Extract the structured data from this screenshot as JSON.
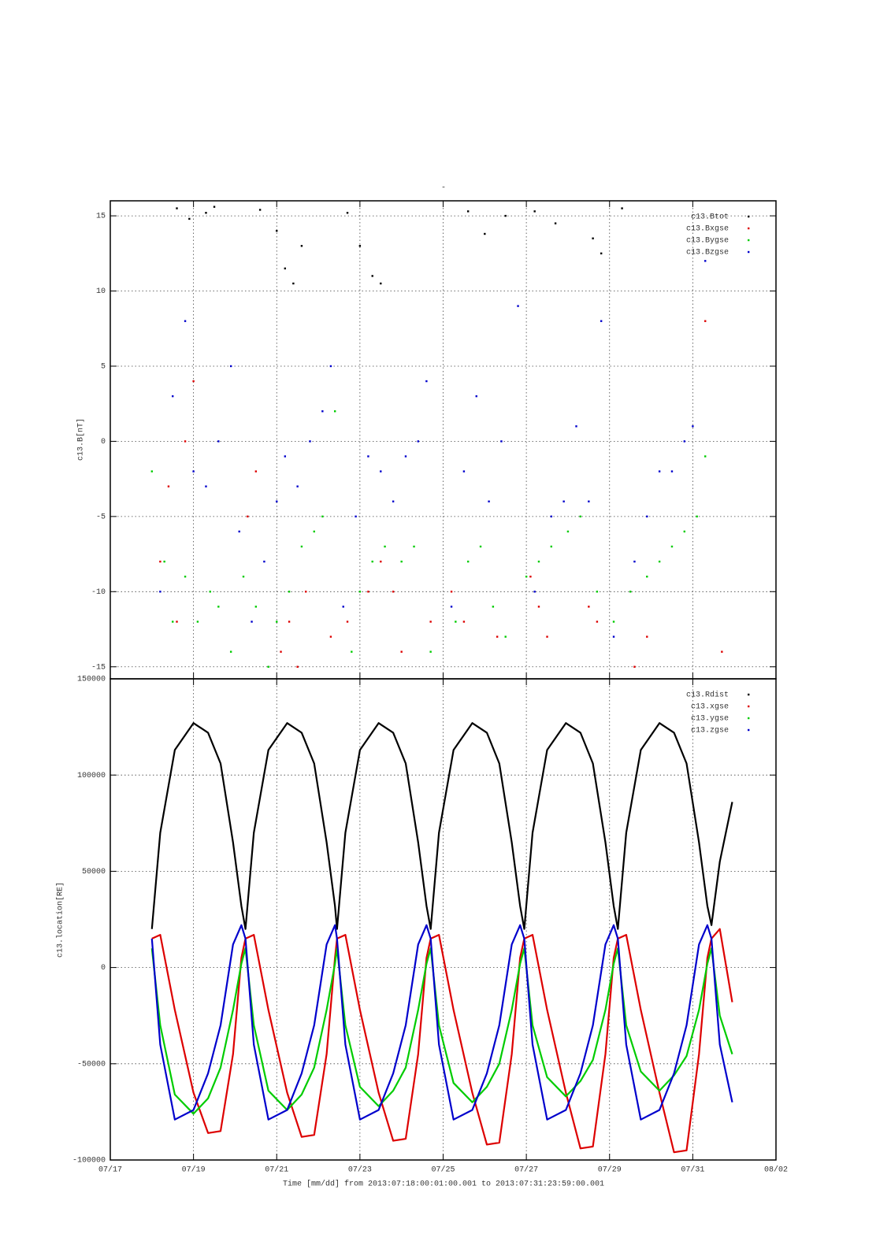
{
  "chart_data": [
    {
      "type": "scatter",
      "title": "-",
      "ylabel": "c13.B[nT]",
      "grid": true,
      "legend": "top-right",
      "xlim": [
        17,
        33
      ],
      "ylim": [
        -15.8,
        16
      ],
      "yticks": [
        -15,
        -10,
        -5,
        0,
        5,
        10,
        15
      ],
      "series": [
        {
          "name": "c13.Btot",
          "color": "#000000",
          "x": [
            18.6,
            18.9,
            19.3,
            19.5,
            20.6,
            21.0,
            21.2,
            21.4,
            21.6,
            22.7,
            23.0,
            23.3,
            23.5,
            25.6,
            26.0,
            26.5,
            27.2,
            27.7,
            28.6,
            28.8,
            29.3
          ],
          "values": [
            15.5,
            14.8,
            15.2,
            15.6,
            15.4,
            14,
            11.5,
            10.5,
            13,
            15.2,
            13,
            11,
            10.5,
            15.3,
            13.8,
            15,
            15.3,
            14.5,
            13.5,
            12.5,
            15.5
          ]
        },
        {
          "name": "c13.Bxgse",
          "color": "#dd0000",
          "x": [
            18.2,
            18.4,
            18.6,
            18.8,
            19.0,
            20.3,
            20.5,
            21.1,
            21.3,
            21.5,
            21.7,
            22.3,
            22.7,
            23.2,
            23.5,
            23.8,
            24.0,
            24.7,
            25.2,
            25.5,
            26.3,
            27.1,
            27.3,
            27.5,
            28.5,
            28.7,
            29.6,
            29.9,
            31.3,
            31.7
          ],
          "values": [
            -8,
            -3,
            -12,
            0,
            4,
            -5,
            -2,
            -14,
            -12,
            -15,
            -10,
            -13,
            -12,
            -10,
            -8,
            -10,
            -14,
            -12,
            -10,
            -12,
            -13,
            -9,
            -11,
            -13,
            -11,
            -12,
            -15,
            -13,
            8,
            -14
          ]
        },
        {
          "name": "c13.Bygse",
          "color": "#00cc00",
          "x": [
            18.0,
            18.3,
            18.5,
            18.8,
            19.1,
            19.4,
            19.6,
            19.9,
            20.2,
            20.5,
            20.8,
            21.0,
            21.3,
            21.6,
            21.9,
            22.1,
            22.4,
            22.8,
            23.0,
            23.3,
            23.6,
            24.0,
            24.3,
            24.7,
            25.3,
            25.6,
            25.9,
            26.2,
            26.5,
            27.0,
            27.3,
            27.6,
            28.0,
            28.3,
            28.7,
            29.1,
            29.5,
            29.9,
            30.2,
            30.5,
            30.8,
            31.1,
            31.3
          ],
          "values": [
            -2,
            -8,
            -12,
            -9,
            -12,
            -10,
            -11,
            -14,
            -9,
            -11,
            -15,
            -12,
            -10,
            -7,
            -6,
            -5,
            2,
            -14,
            -10,
            -8,
            -7,
            -8,
            -7,
            -14,
            -12,
            -8,
            -7,
            -11,
            -13,
            -9,
            -8,
            -7,
            -6,
            -5,
            -10,
            -12,
            -10,
            -9,
            -8,
            -7,
            -6,
            -5,
            -1
          ]
        },
        {
          "name": "c13.Bzgse",
          "color": "#0000cc",
          "x": [
            18.2,
            18.5,
            18.8,
            19.0,
            19.3,
            19.6,
            19.9,
            20.1,
            20.4,
            20.7,
            21.0,
            21.2,
            21.5,
            21.8,
            22.1,
            22.3,
            22.6,
            22.9,
            23.2,
            23.5,
            23.8,
            24.1,
            24.4,
            24.6,
            25.2,
            25.5,
            25.8,
            26.1,
            26.4,
            26.8,
            27.2,
            27.6,
            27.9,
            28.2,
            28.5,
            28.8,
            29.1,
            29.6,
            29.9,
            30.2,
            30.5,
            30.8,
            31.0,
            31.3
          ],
          "values": [
            -10,
            3,
            8,
            -2,
            -3,
            0,
            5,
            -6,
            -12,
            -8,
            -4,
            -1,
            -3,
            0,
            2,
            5,
            -11,
            -5,
            -1,
            -2,
            -4,
            -1,
            0,
            4,
            -11,
            -2,
            3,
            -4,
            0,
            9,
            -10,
            -5,
            -4,
            1,
            -4,
            8,
            -13,
            -8,
            -5,
            -2,
            -2,
            0,
            1,
            12
          ]
        }
      ]
    },
    {
      "type": "line",
      "ylabel": "c13.location[RE]",
      "xlabel": "Time [mm/dd]  from 2013:07:18:00:01:00.001  to  2013:07:31:23:59:00.001",
      "grid": true,
      "legend": "top-right",
      "xlim": [
        17,
        33
      ],
      "ylim": [
        -100000,
        150000
      ],
      "xticks": [
        {
          "value": 17,
          "label": "07/17"
        },
        {
          "value": 19,
          "label": "07/19"
        },
        {
          "value": 21,
          "label": "07/21"
        },
        {
          "value": 23,
          "label": "07/23"
        },
        {
          "value": 25,
          "label": "07/25"
        },
        {
          "value": 27,
          "label": "07/27"
        },
        {
          "value": 29,
          "label": "07/29"
        },
        {
          "value": 31,
          "label": "07/31"
        },
        {
          "value": 33,
          "label": "08/02"
        }
      ],
      "yticks": [
        -100000,
        -50000,
        0,
        50000,
        100000,
        150000
      ],
      "x": [
        18.0,
        18.2,
        18.55,
        19.0,
        19.35,
        19.65,
        19.95,
        20.15,
        20.25,
        20.45,
        20.8,
        21.25,
        21.6,
        21.9,
        22.2,
        22.4,
        22.45,
        22.65,
        23.0,
        23.45,
        23.8,
        24.1,
        24.4,
        24.6,
        24.7,
        24.9,
        25.25,
        25.7,
        26.05,
        26.35,
        26.65,
        26.85,
        26.95,
        27.15,
        27.5,
        27.95,
        28.3,
        28.6,
        28.9,
        29.1,
        29.2,
        29.4,
        29.75,
        30.2,
        30.55,
        30.85,
        31.15,
        31.35,
        31.45,
        31.65,
        31.95
      ],
      "series": [
        {
          "name": "c13.Rdist",
          "color": "#000000",
          "values": [
            20000,
            70000,
            113000,
            127000,
            122000,
            106000,
            65000,
            32000,
            20000,
            70000,
            113000,
            127000,
            122000,
            106000,
            65000,
            32000,
            20000,
            70000,
            113000,
            127000,
            122000,
            106000,
            65000,
            32000,
            20000,
            70000,
            113000,
            127000,
            122000,
            106000,
            65000,
            32000,
            20000,
            70000,
            113000,
            127000,
            122000,
            106000,
            65000,
            32000,
            20000,
            70000,
            113000,
            127000,
            122000,
            106000,
            65000,
            32000,
            22000,
            55000,
            86000
          ]
        },
        {
          "name": "c13.xgse",
          "color": "#dd0000",
          "values": [
            15000,
            17000,
            -22000,
            -65000,
            -86000,
            -85000,
            -45000,
            5000,
            15000,
            17000,
            -22000,
            -65000,
            -88000,
            -87000,
            -45000,
            5000,
            15000,
            17000,
            -22000,
            -65000,
            -90000,
            -89000,
            -45000,
            5000,
            15000,
            17000,
            -22000,
            -65000,
            -92000,
            -91000,
            -45000,
            5000,
            15000,
            17000,
            -22000,
            -65000,
            -94000,
            -93000,
            -45000,
            5000,
            15000,
            17000,
            -22000,
            -65000,
            -96000,
            -95000,
            -45000,
            5000,
            15000,
            20000,
            -18000
          ]
        },
        {
          "name": "c13.ygse",
          "color": "#00cc00",
          "values": [
            10000,
            -30000,
            -66000,
            -76000,
            -68000,
            -52000,
            -22000,
            2000,
            10000,
            -30000,
            -64000,
            -74000,
            -66000,
            -52000,
            -22000,
            2000,
            10000,
            -30000,
            -62000,
            -72000,
            -64000,
            -52000,
            -22000,
            2000,
            10000,
            -30000,
            -60000,
            -70000,
            -62000,
            -50000,
            -22000,
            2000,
            10000,
            -30000,
            -57000,
            -67000,
            -59000,
            -48000,
            -22000,
            2000,
            10000,
            -30000,
            -54000,
            -64000,
            -56000,
            -46000,
            -22000,
            2000,
            10000,
            -25000,
            -45000
          ]
        },
        {
          "name": "c13.zgse",
          "color": "#0000cc",
          "values": [
            15000,
            -40000,
            -79000,
            -74000,
            -55000,
            -30000,
            12000,
            22000,
            15000,
            -40000,
            -79000,
            -74000,
            -55000,
            -30000,
            12000,
            22000,
            15000,
            -40000,
            -79000,
            -74000,
            -55000,
            -30000,
            12000,
            22000,
            15000,
            -40000,
            -79000,
            -74000,
            -55000,
            -30000,
            12000,
            22000,
            15000,
            -40000,
            -79000,
            -74000,
            -55000,
            -30000,
            12000,
            22000,
            15000,
            -40000,
            -79000,
            -74000,
            -55000,
            -30000,
            12000,
            22000,
            15000,
            -40000,
            -70000
          ]
        }
      ]
    }
  ]
}
